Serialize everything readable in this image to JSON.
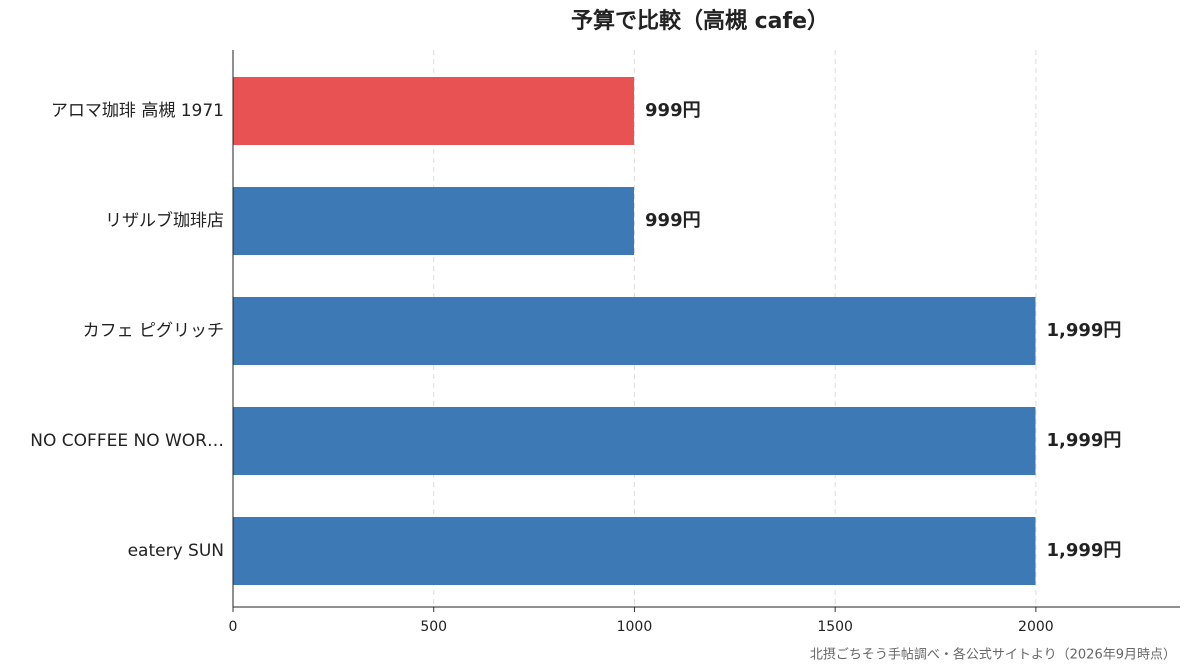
{
  "chart_data": {
    "type": "bar",
    "orientation": "horizontal",
    "title": "予算で比較（高槻 cafe）",
    "footnote": "北摂ごちそう手帖調べ・各公式サイトより（2026年9月時点）",
    "categories": [
      "アロマ珈琲 高槻 1971",
      "リザルブ珈琲店",
      "カフェ ピグリッチ",
      "NO COFFEE NO WOR…",
      "eatery SUN"
    ],
    "values": [
      999,
      999,
      1999,
      1999,
      1999
    ],
    "value_labels": [
      "999円",
      "999円",
      "1,999円",
      "1,999円",
      "1,999円"
    ],
    "colors": [
      "#e85252",
      "#3d7ab5",
      "#3d7ab5",
      "#3d7ab5",
      "#3d7ab5"
    ],
    "xlim": [
      0,
      2359
    ],
    "xticks": [
      0,
      500,
      1000,
      1500,
      2000
    ],
    "grid": true
  }
}
